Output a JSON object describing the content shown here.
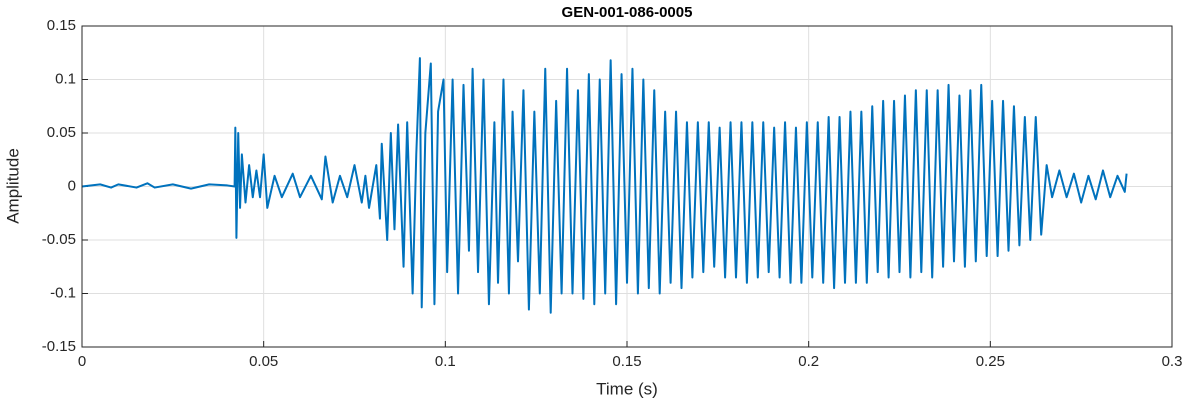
{
  "chart_data": {
    "type": "line",
    "title": "GEN-001-086-0005",
    "x_label": "Time (s)",
    "y_label": "Amplitude",
    "xlim": [
      0,
      0.3
    ],
    "xticks": [
      0,
      0.05,
      0.1,
      0.15,
      0.2,
      0.25,
      0.3
    ],
    "ylim": [
      -0.15,
      0.15
    ],
    "yticks": [
      -0.15,
      -0.1,
      -0.05,
      0,
      0.05,
      0.1,
      0.15
    ],
    "grid": true,
    "x": [
      0,
      0.005,
      0.008,
      0.01,
      0.015,
      0.018,
      0.02,
      0.025,
      0.03,
      0.035,
      0.04,
      0.042,
      0.0422,
      0.0425,
      0.043,
      0.0435,
      0.044,
      0.045,
      0.046,
      0.047,
      0.048,
      0.049,
      0.05,
      0.051,
      0.053,
      0.055,
      0.058,
      0.06,
      0.063,
      0.066,
      0.067,
      0.069,
      0.071,
      0.073,
      0.075,
      0.077,
      0.078,
      0.079,
      0.081,
      0.082,
      0.0825,
      0.084,
      0.085,
      0.086,
      0.087,
      0.0885,
      0.0895,
      0.091,
      0.092,
      0.093,
      0.0935,
      0.0945,
      0.096,
      0.097,
      0.098,
      0.0995,
      0.1005,
      0.102,
      0.1035,
      0.105,
      0.1065,
      0.1075,
      0.109,
      0.1105,
      0.112,
      0.1135,
      0.1145,
      0.116,
      0.1175,
      0.1185,
      0.12,
      0.1215,
      0.123,
      0.1245,
      0.126,
      0.1275,
      0.129,
      0.1305,
      0.132,
      0.1335,
      0.135,
      0.1365,
      0.138,
      0.1395,
      0.141,
      0.1425,
      0.144,
      0.1455,
      0.147,
      0.1485,
      0.15,
      0.1515,
      0.153,
      0.1545,
      0.156,
      0.1575,
      0.159,
      0.1605,
      0.162,
      0.1635,
      0.165,
      0.1665,
      0.168,
      0.1695,
      0.171,
      0.1725,
      0.174,
      0.1755,
      0.177,
      0.1785,
      0.18,
      0.1815,
      0.183,
      0.1845,
      0.186,
      0.1875,
      0.189,
      0.1905,
      0.192,
      0.1935,
      0.195,
      0.1965,
      0.198,
      0.1995,
      0.201,
      0.2025,
      0.204,
      0.2055,
      0.207,
      0.2085,
      0.21,
      0.2115,
      0.213,
      0.2145,
      0.216,
      0.2175,
      0.219,
      0.2205,
      0.222,
      0.2235,
      0.225,
      0.2265,
      0.228,
      0.2295,
      0.231,
      0.2325,
      0.234,
      0.2355,
      0.237,
      0.2385,
      0.24,
      0.2415,
      0.243,
      0.2445,
      0.246,
      0.2475,
      0.249,
      0.2505,
      0.252,
      0.2535,
      0.255,
      0.2565,
      0.258,
      0.2595,
      0.261,
      0.2625,
      0.264,
      0.2655,
      0.267,
      0.269,
      0.271,
      0.273,
      0.275,
      0.277,
      0.279,
      0.281,
      0.283,
      0.285,
      0.287,
      0.2875
    ],
    "series": [
      {
        "color": "#0072bd",
        "values": [
          0,
          0.002,
          -0.001,
          0.002,
          -0.001,
          0.003,
          -0.001,
          0.002,
          -0.002,
          0.002,
          0.001,
          0,
          0.055,
          -0.048,
          0.05,
          -0.02,
          0.03,
          -0.015,
          0.02,
          -0.01,
          0.015,
          -0.01,
          0.03,
          -0.02,
          0.01,
          -0.01,
          0.012,
          -0.01,
          0.01,
          -0.012,
          0.028,
          -0.015,
          0.01,
          -0.01,
          0.02,
          -0.015,
          0.01,
          -0.02,
          0.02,
          -0.03,
          0.04,
          -0.05,
          0.05,
          -0.04,
          0.058,
          -0.075,
          0.06,
          -0.1,
          0.03,
          0.12,
          -0.113,
          0.05,
          0.115,
          -0.11,
          0.07,
          0.1,
          -0.08,
          0.1,
          -0.1,
          0.095,
          -0.06,
          0.11,
          -0.08,
          0.1,
          -0.11,
          0.06,
          -0.09,
          0.1,
          -0.1,
          0.07,
          -0.07,
          0.09,
          -0.115,
          0.07,
          -0.1,
          0.11,
          -0.118,
          0.08,
          -0.1,
          0.11,
          -0.1,
          0.09,
          -0.105,
          0.105,
          -0.11,
          0.1,
          -0.1,
          0.118,
          -0.11,
          0.105,
          -0.09,
          0.11,
          -0.1,
          0.1,
          -0.095,
          0.09,
          -0.1,
          0.07,
          -0.09,
          0.07,
          -0.095,
          0.06,
          -0.085,
          0.06,
          -0.08,
          0.06,
          -0.075,
          0.055,
          -0.085,
          0.06,
          -0.085,
          0.06,
          -0.09,
          0.06,
          -0.085,
          0.06,
          -0.08,
          0.055,
          -0.085,
          0.06,
          -0.09,
          0.055,
          -0.09,
          0.06,
          -0.085,
          0.06,
          -0.09,
          0.065,
          -0.095,
          0.065,
          -0.09,
          0.07,
          -0.09,
          0.07,
          -0.09,
          0.075,
          -0.08,
          0.08,
          -0.085,
          0.08,
          -0.08,
          0.085,
          -0.085,
          0.09,
          -0.08,
          0.09,
          -0.085,
          0.09,
          -0.075,
          0.095,
          -0.07,
          0.085,
          -0.075,
          0.09,
          -0.07,
          0.095,
          -0.065,
          0.08,
          -0.065,
          0.08,
          -0.06,
          0.075,
          -0.055,
          0.065,
          -0.05,
          0.065,
          -0.045,
          0.02,
          -0.01,
          0.015,
          -0.01,
          0.012,
          -0.015,
          0.01,
          -0.012,
          0.015,
          -0.01,
          0.01,
          -0.005,
          0.012
        ]
      }
    ]
  }
}
